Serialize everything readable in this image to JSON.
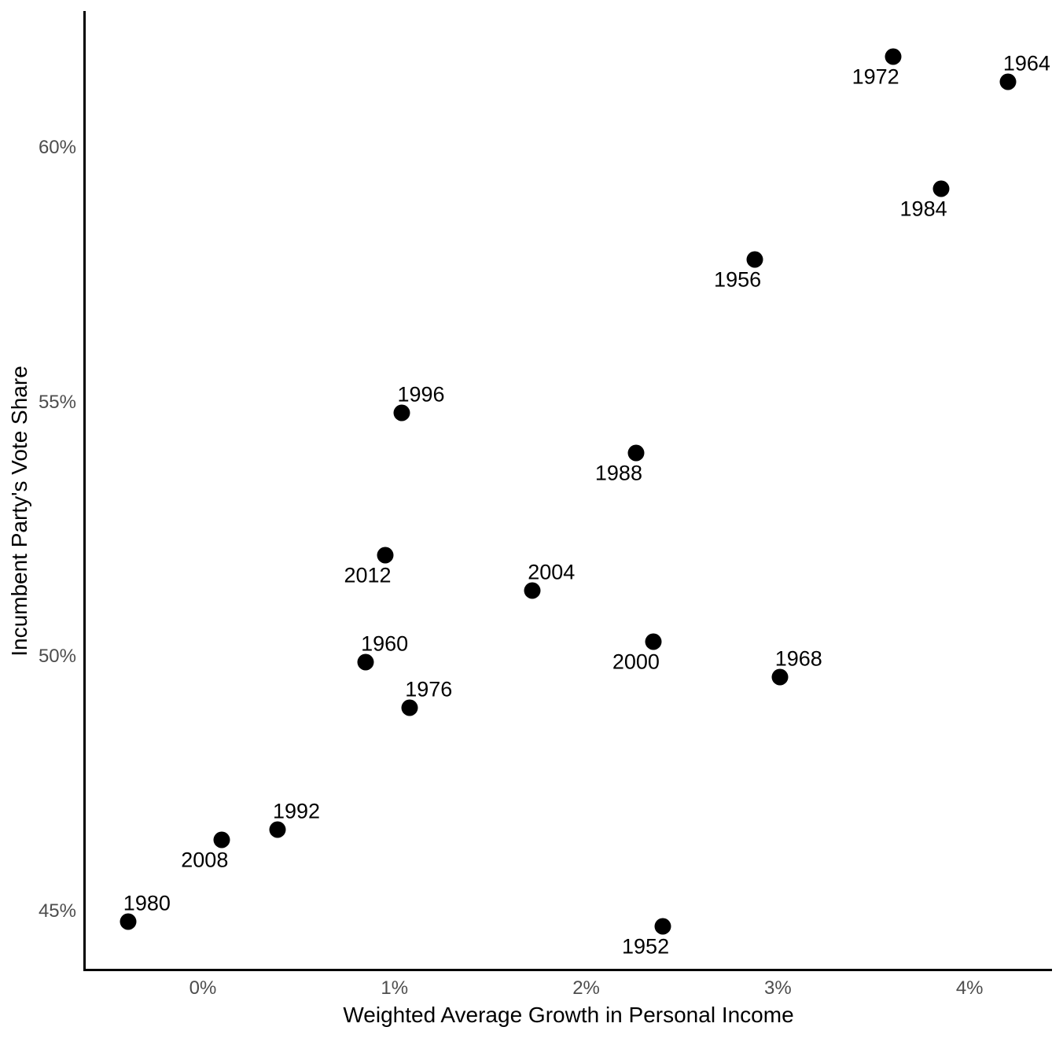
{
  "chart_data": {
    "type": "scatter",
    "title": "",
    "xlabel": "Weighted Average Growth in Personal Income",
    "ylabel": "Incumbent Party's Vote Share",
    "xlim": [
      -0.615,
      4.43
    ],
    "ylim": [
      43.85,
      62.69
    ],
    "grid": false,
    "legend": false,
    "point_color": "#000000",
    "axis_color": "#000000",
    "tick_label_color": "#4d4d4d",
    "x_ticks": [
      {
        "value": 0,
        "label": "0%"
      },
      {
        "value": 1,
        "label": "1%"
      },
      {
        "value": 2,
        "label": "2%"
      },
      {
        "value": 3,
        "label": "3%"
      },
      {
        "value": 4,
        "label": "4%"
      }
    ],
    "y_ticks": [
      {
        "value": 45,
        "label": "45%"
      },
      {
        "value": 50,
        "label": "50%"
      },
      {
        "value": 55,
        "label": "55%"
      },
      {
        "value": 60,
        "label": "60%"
      }
    ],
    "points": [
      {
        "year": "1952",
        "income_growth_pct": 2.4,
        "vote_share_pct": 44.7,
        "label_pos": "below"
      },
      {
        "year": "1956",
        "income_growth_pct": 2.88,
        "vote_share_pct": 57.8,
        "label_pos": "below"
      },
      {
        "year": "1960",
        "income_growth_pct": 0.85,
        "vote_share_pct": 49.9,
        "label_pos": "above"
      },
      {
        "year": "1964",
        "income_growth_pct": 4.2,
        "vote_share_pct": 61.3,
        "label_pos": "above"
      },
      {
        "year": "1968",
        "income_growth_pct": 3.01,
        "vote_share_pct": 49.6,
        "label_pos": "above"
      },
      {
        "year": "1972",
        "income_growth_pct": 3.6,
        "vote_share_pct": 61.8,
        "label_pos": "below"
      },
      {
        "year": "1976",
        "income_growth_pct": 1.08,
        "vote_share_pct": 49.0,
        "label_pos": "above"
      },
      {
        "year": "1980",
        "income_growth_pct": -0.39,
        "vote_share_pct": 44.8,
        "label_pos": "above"
      },
      {
        "year": "1984",
        "income_growth_pct": 3.85,
        "vote_share_pct": 59.2,
        "label_pos": "below"
      },
      {
        "year": "1988",
        "income_growth_pct": 2.26,
        "vote_share_pct": 54.0,
        "label_pos": "below"
      },
      {
        "year": "1992",
        "income_growth_pct": 0.39,
        "vote_share_pct": 46.6,
        "label_pos": "above"
      },
      {
        "year": "1996",
        "income_growth_pct": 1.04,
        "vote_share_pct": 54.8,
        "label_pos": "above"
      },
      {
        "year": "2000",
        "income_growth_pct": 2.35,
        "vote_share_pct": 50.3,
        "label_pos": "below"
      },
      {
        "year": "2004",
        "income_growth_pct": 1.72,
        "vote_share_pct": 51.3,
        "label_pos": "above"
      },
      {
        "year": "2008",
        "income_growth_pct": 0.1,
        "vote_share_pct": 46.4,
        "label_pos": "below"
      },
      {
        "year": "2012",
        "income_growth_pct": 0.95,
        "vote_share_pct": 52.0,
        "label_pos": "below"
      }
    ]
  }
}
